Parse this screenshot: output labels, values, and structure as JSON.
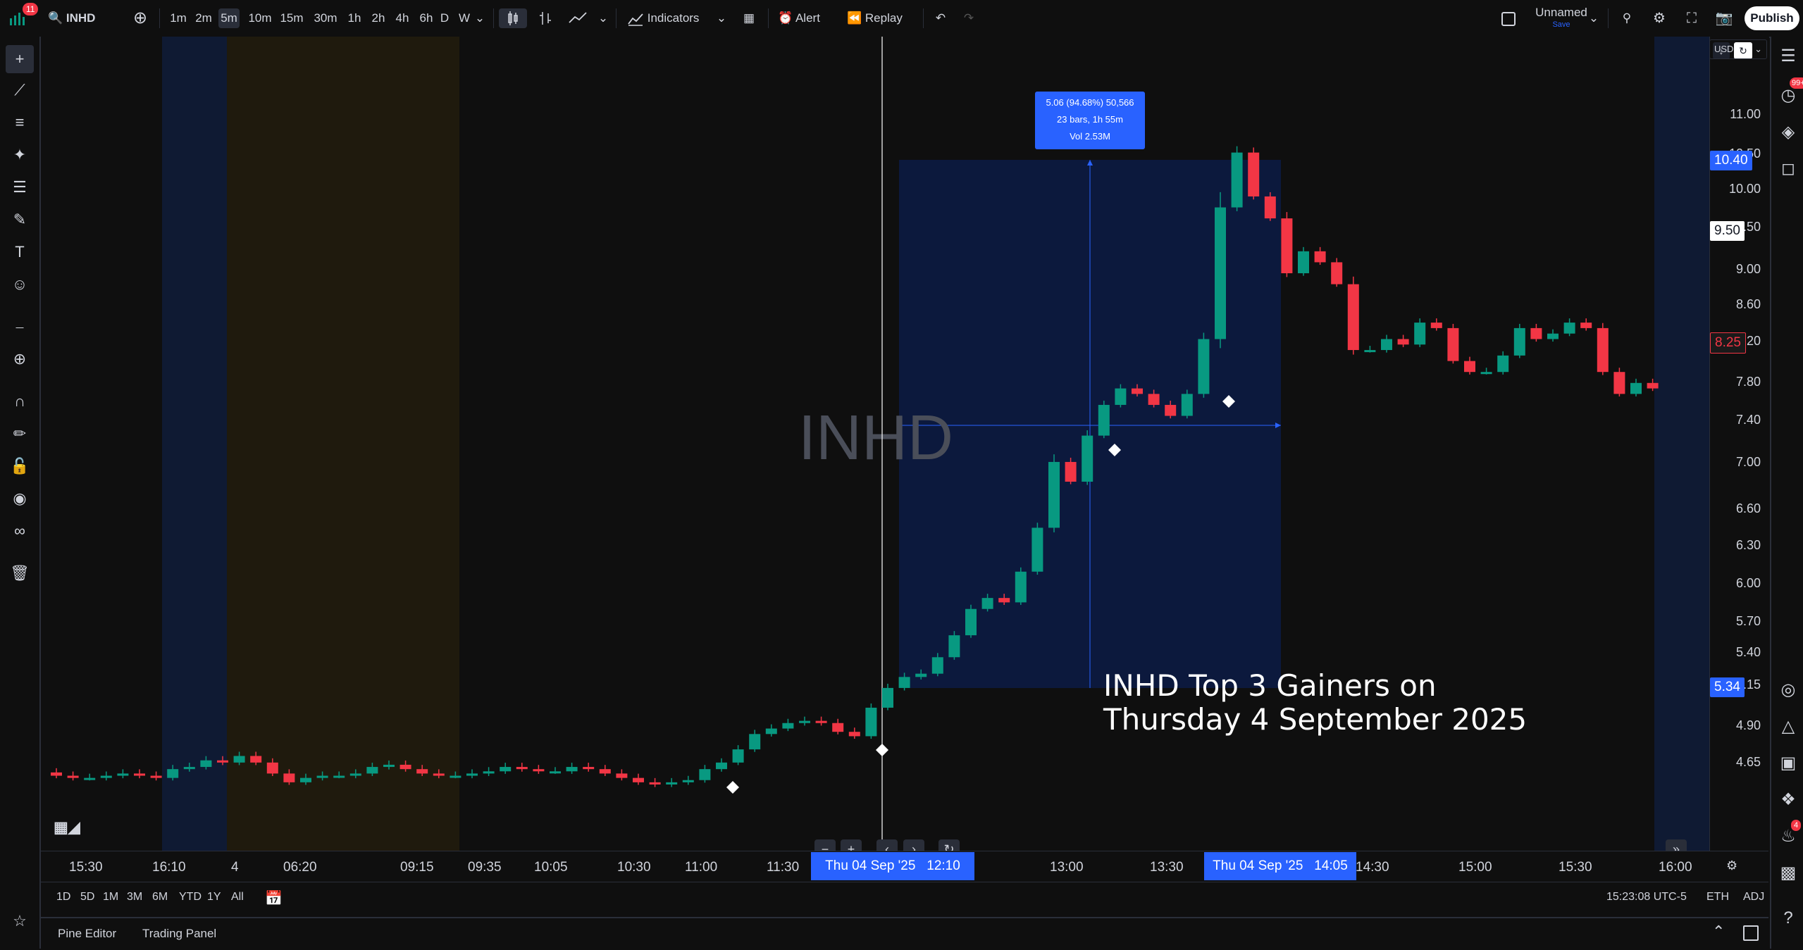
{
  "toolbar": {
    "notifications": "11",
    "symbol": "INHD",
    "intervals": [
      "1m",
      "2m",
      "5m",
      "10m",
      "15m",
      "30m",
      "1h",
      "2h",
      "4h",
      "6h",
      "D",
      "W"
    ],
    "active_interval": "5m",
    "indicators_label": "Indicators",
    "alert_label": "Alert",
    "replay_label": "Replay",
    "layout_name": "Unnamed",
    "layout_status": "Save",
    "publish_label": "Publish"
  },
  "currency": "USD",
  "chart": {
    "watermark": "INHD",
    "measure": {
      "line1": "5.06 (94.68%) 50,566",
      "line2": "23 bars, 1h 55m",
      "line3": "Vol 2.53M"
    },
    "caption_line1": "INHD Top 3 Gainers on",
    "caption_line2": "Thursday 4 September 2025"
  },
  "price_axis": {
    "ticks": [
      "11.00",
      "10.50",
      "10.00",
      "9.50",
      "9.00",
      "8.60",
      "8.20",
      "7.80",
      "7.40",
      "7.00",
      "6.60",
      "6.30",
      "6.00",
      "5.70",
      "5.40",
      "5.15",
      "4.90",
      "4.65"
    ],
    "badge_top": "10.40",
    "badge_crosshair": "9.50",
    "badge_last": "8.25",
    "badge_bottom": "5.34"
  },
  "time_axis": {
    "ticks": [
      "15:30",
      "16:10",
      "4",
      "06:20",
      "09:15",
      "09:35",
      "10:05",
      "10:30",
      "11:00",
      "11:30",
      "13:00",
      "13:30",
      "14:30",
      "15:00",
      "15:30",
      "16:00"
    ],
    "marker_start": "Thu 04 Sep '25   12:10",
    "marker_end": "Thu 04 Sep '25   14:05"
  },
  "ranges": [
    "1D",
    "5D",
    "1M",
    "3M",
    "6M",
    "YTD",
    "1Y",
    "All"
  ],
  "status": {
    "clock": "15:23:08 UTC-5",
    "session": "ETH",
    "adj": "ADJ"
  },
  "bottom_tabs": [
    "Pine Editor",
    "Trading Panel"
  ],
  "right_badges": {
    "alerts": "99+",
    "notifications": "4"
  },
  "colors": {
    "up": "#089981",
    "down": "#f23645",
    "accent": "#2962ff",
    "measure_box": "#0d1a40"
  },
  "chart_data": {
    "type": "candlestick",
    "symbol": "INHD",
    "interval": "5m",
    "y_range": [
      4.55,
      11.2
    ],
    "candles": [
      [
        4.75,
        4.72
      ],
      [
        4.72,
        4.7
      ],
      [
        4.7,
        4.7
      ],
      [
        4.7,
        4.72
      ],
      [
        4.72,
        4.74
      ],
      [
        4.74,
        4.72
      ],
      [
        4.72,
        4.7
      ],
      [
        4.7,
        4.78
      ],
      [
        4.78,
        4.8
      ],
      [
        4.8,
        4.86
      ],
      [
        4.86,
        4.84
      ],
      [
        4.84,
        4.9
      ],
      [
        4.9,
        4.84
      ],
      [
        4.84,
        4.74
      ],
      [
        4.74,
        4.66
      ],
      [
        4.66,
        4.7
      ],
      [
        4.7,
        4.72
      ],
      [
        4.72,
        4.72
      ],
      [
        4.72,
        4.74
      ],
      [
        4.74,
        4.8
      ],
      [
        4.8,
        4.82
      ],
      [
        4.82,
        4.78
      ],
      [
        4.78,
        4.74
      ],
      [
        4.74,
        4.72
      ],
      [
        4.72,
        4.72
      ],
      [
        4.72,
        4.74
      ],
      [
        4.74,
        4.76
      ],
      [
        4.76,
        4.8
      ],
      [
        4.8,
        4.78
      ],
      [
        4.78,
        4.76
      ],
      [
        4.76,
        4.76
      ],
      [
        4.76,
        4.8
      ],
      [
        4.8,
        4.78
      ],
      [
        4.78,
        4.74
      ],
      [
        4.74,
        4.7
      ],
      [
        4.7,
        4.66
      ],
      [
        4.66,
        4.64
      ],
      [
        4.64,
        4.66
      ],
      [
        4.66,
        4.68
      ],
      [
        4.68,
        4.78
      ],
      [
        4.78,
        4.84
      ],
      [
        4.84,
        4.96
      ],
      [
        4.96,
        5.1
      ],
      [
        5.1,
        5.15
      ],
      [
        5.15,
        5.2
      ],
      [
        5.2,
        5.22
      ],
      [
        5.22,
        5.2
      ],
      [
        5.2,
        5.12
      ],
      [
        5.12,
        5.08
      ],
      [
        5.08,
        5.34
      ],
      [
        5.34,
        5.52
      ],
      [
        5.52,
        5.62
      ],
      [
        5.62,
        5.65
      ],
      [
        5.65,
        5.8
      ],
      [
        5.8,
        6.0
      ],
      [
        6.0,
        6.24
      ],
      [
        6.24,
        6.34
      ],
      [
        6.34,
        6.3
      ],
      [
        6.3,
        6.58
      ],
      [
        6.58,
        6.98
      ],
      [
        6.98,
        7.58
      ],
      [
        7.58,
        7.4
      ],
      [
        7.4,
        7.82
      ],
      [
        7.82,
        8.1
      ],
      [
        8.1,
        8.25
      ],
      [
        8.25,
        8.2
      ],
      [
        8.2,
        8.1
      ],
      [
        8.1,
        8.0
      ],
      [
        8.0,
        8.2
      ],
      [
        8.2,
        8.7
      ],
      [
        8.7,
        9.9
      ],
      [
        9.9,
        10.4
      ],
      [
        10.4,
        10.0
      ],
      [
        10.0,
        9.8
      ],
      [
        9.8,
        9.3
      ],
      [
        9.3,
        9.5
      ],
      [
        9.5,
        9.4
      ],
      [
        9.4,
        9.2
      ],
      [
        9.2,
        8.6
      ],
      [
        8.6,
        8.6
      ],
      [
        8.6,
        8.7
      ],
      [
        8.7,
        8.65
      ],
      [
        8.65,
        8.85
      ],
      [
        8.85,
        8.8
      ],
      [
        8.8,
        8.5
      ],
      [
        8.5,
        8.4
      ],
      [
        8.4,
        8.4
      ],
      [
        8.4,
        8.55
      ],
      [
        8.55,
        8.8
      ],
      [
        8.8,
        8.7
      ],
      [
        8.7,
        8.75
      ],
      [
        8.75,
        8.85
      ],
      [
        8.85,
        8.8
      ],
      [
        8.8,
        8.4
      ],
      [
        8.4,
        8.2
      ],
      [
        8.2,
        8.3
      ],
      [
        8.3,
        8.25
      ]
    ]
  }
}
